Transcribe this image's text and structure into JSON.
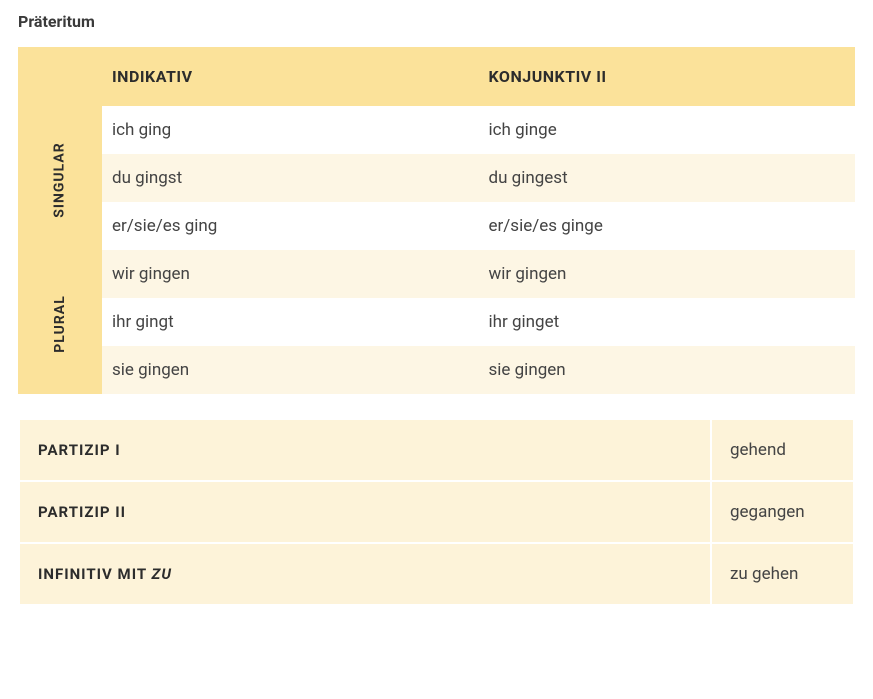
{
  "colors": {
    "header": "#fbe29a",
    "side": "#fbe29a",
    "row_light": "#fdf6e4",
    "row_white": "#ffffff",
    "form_label_bg": "#fdf3d9",
    "form_val_bg": "#fdf3d9",
    "text": "#2c2c2c"
  },
  "title": "Präteritum",
  "table": {
    "col_indikativ": "INDIKATIV",
    "col_konjunktiv": "KONJUNKTIV II",
    "singular_label": "SINGULAR",
    "plural_label": "PLURAL",
    "rows": [
      {
        "ind": "ich ging",
        "konj": "ich ginge"
      },
      {
        "ind": "du gingst",
        "konj": "du gingest"
      },
      {
        "ind": "er/sie/es ging",
        "konj": "er/sie/es ginge"
      },
      {
        "ind": "wir gingen",
        "konj": "wir gingen"
      },
      {
        "ind": "ihr gingt",
        "konj": "ihr ginget"
      },
      {
        "ind": "sie gingen",
        "konj": "sie gingen"
      }
    ]
  },
  "forms": {
    "partizip1_label": "PARTIZIP I",
    "partizip1_value": "gehend",
    "partizip2_label": "PARTIZIP II",
    "partizip2_value": "gegangen",
    "inf_zu_label_a": "INFINITIV MIT ",
    "inf_zu_label_b": "ZU",
    "inf_zu_value": "zu gehen"
  }
}
